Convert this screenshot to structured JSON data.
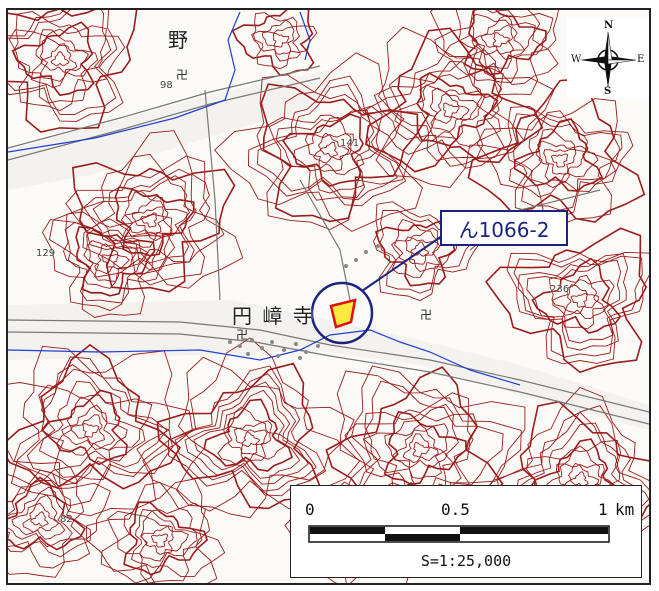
{
  "map": {
    "places": [
      {
        "key": "no",
        "label": "野"
      },
      {
        "key": "enrenji",
        "label": "円 嶂 寺"
      }
    ],
    "elevations": [
      "98",
      "141",
      "129",
      "236",
      "82"
    ],
    "symbols": [
      "卍",
      "卍",
      "卍"
    ],
    "callout": {
      "label": "ん1066-2"
    },
    "colors": {
      "contour": "#9b1c1c",
      "river": "#1f3fd6",
      "road": "#777777",
      "marker_circle": "#1a237e",
      "parcel_fill": "#ffe400",
      "parcel_outline": "#e01010"
    }
  },
  "compass": {
    "n": "N",
    "s": "S",
    "e": "E",
    "w": "W"
  },
  "scale": {
    "tick_labels": [
      "0",
      "0.5",
      "1",
      "km"
    ],
    "ratio": "S=1:25,000"
  }
}
